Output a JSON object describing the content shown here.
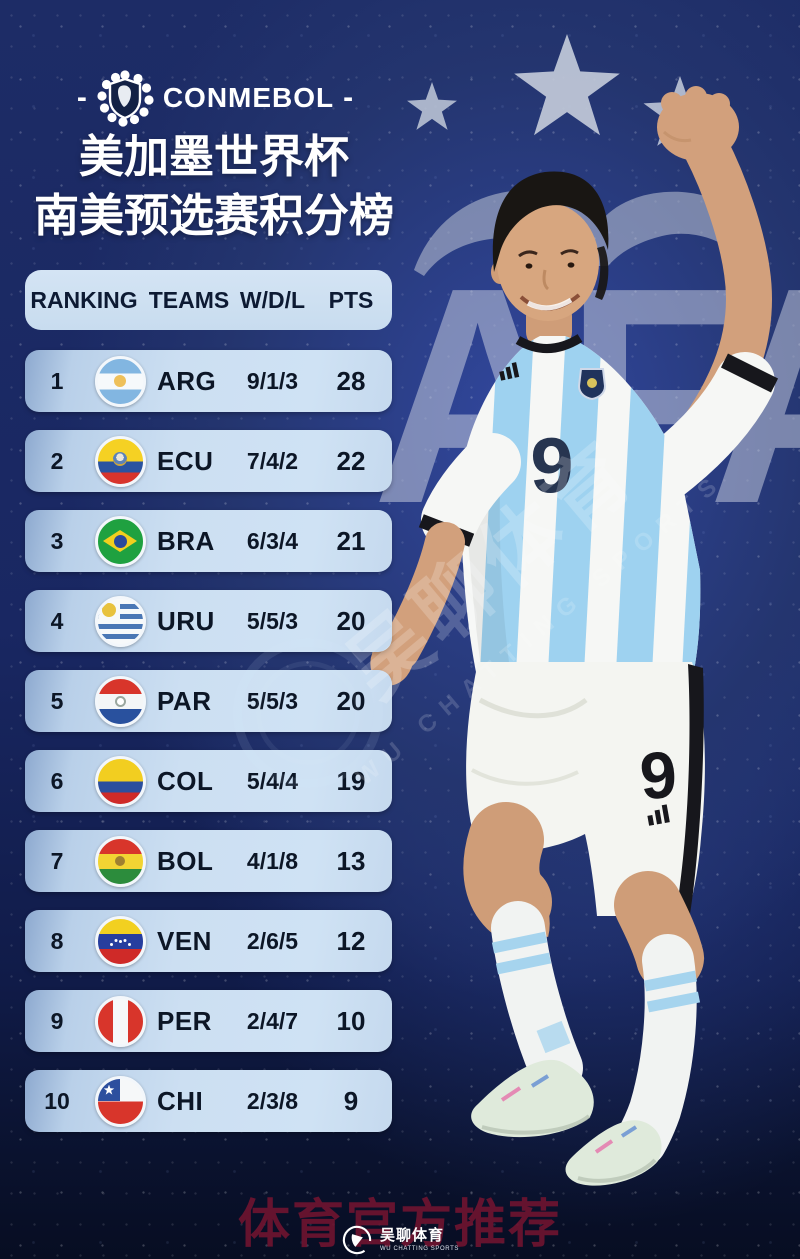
{
  "poster": {
    "league": {
      "dash_left": "-",
      "name": "CONMEBOL",
      "dash_right": "-"
    },
    "title_line1": "美加墨世界杯",
    "title_line2": "南美预选赛积分榜"
  },
  "table": {
    "columns": [
      "RANKING",
      "TEAMS",
      "W/D/L",
      "PTS"
    ],
    "rows": [
      {
        "rank": "1",
        "team": "ARG",
        "flag": "arg",
        "wdl": "9/1/3",
        "pts": "28"
      },
      {
        "rank": "2",
        "team": "ECU",
        "flag": "ecu",
        "wdl": "7/4/2",
        "pts": "22"
      },
      {
        "rank": "3",
        "team": "BRA",
        "flag": "bra",
        "wdl": "6/3/4",
        "pts": "21"
      },
      {
        "rank": "4",
        "team": "URU",
        "flag": "uru",
        "wdl": "5/5/3",
        "pts": "20"
      },
      {
        "rank": "5",
        "team": "PAR",
        "flag": "par",
        "wdl": "5/5/3",
        "pts": "20"
      },
      {
        "rank": "6",
        "team": "COL",
        "flag": "col",
        "wdl": "5/4/4",
        "pts": "19"
      },
      {
        "rank": "7",
        "team": "BOL",
        "flag": "bol",
        "wdl": "4/1/8",
        "pts": "13"
      },
      {
        "rank": "8",
        "team": "VEN",
        "flag": "ven",
        "wdl": "2/6/5",
        "pts": "12"
      },
      {
        "rank": "9",
        "team": "PER",
        "flag": "per",
        "wdl": "2/4/7",
        "pts": "10"
      },
      {
        "rank": "10",
        "team": "CHI",
        "flag": "chi",
        "wdl": "2/3/8",
        "pts": "9"
      }
    ]
  },
  "player": {
    "jersey_number": "9",
    "shorts_number": "9"
  },
  "background": {
    "afa_letters": "AFA"
  },
  "watermark": {
    "cn": "吴聊体育",
    "en": "WU CHATTING SPORTS"
  },
  "footer": {
    "promo": "体育官方推荐",
    "brand_cn": "吴聊体育",
    "brand_en": "WU CHATTING SPORTS"
  },
  "colors": {
    "bg_navy": "#192762",
    "row_light_blue": "#cde0f2",
    "jersey_stripe_blue": "#9ed2f0",
    "star_gray": "#c2cad9",
    "promo_red": "#761430"
  },
  "chart_data": {
    "type": "table",
    "title": "美加墨世界杯 南美预选赛积分榜 (CONMEBOL World Cup qualifiers standings)",
    "columns": [
      "RANKING",
      "TEAMS",
      "W/D/L",
      "PTS"
    ],
    "rows": [
      [
        "1",
        "ARG",
        "9/1/3",
        "28"
      ],
      [
        "2",
        "ECU",
        "7/4/2",
        "22"
      ],
      [
        "3",
        "BRA",
        "6/3/4",
        "21"
      ],
      [
        "4",
        "URU",
        "5/5/3",
        "20"
      ],
      [
        "5",
        "PAR",
        "5/5/3",
        "20"
      ],
      [
        "6",
        "COL",
        "5/4/4",
        "19"
      ],
      [
        "7",
        "BOL",
        "4/1/8",
        "13"
      ],
      [
        "8",
        "VEN",
        "2/6/5",
        "12"
      ],
      [
        "9",
        "PER",
        "2/4/7",
        "10"
      ],
      [
        "10",
        "CHI",
        "2/3/8",
        "9"
      ]
    ]
  }
}
